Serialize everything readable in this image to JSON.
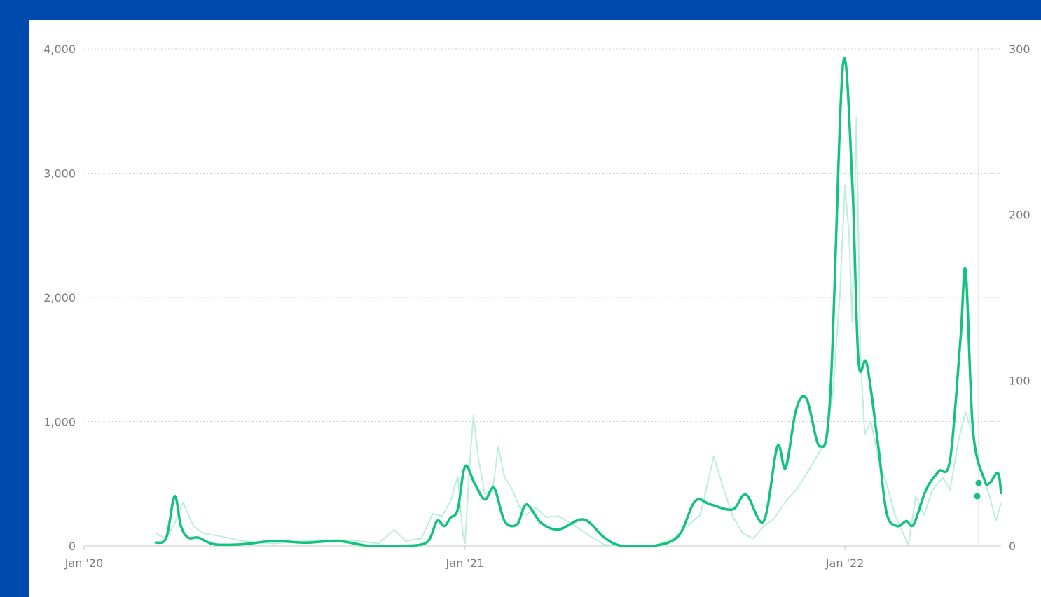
{
  "colors": {
    "frame": "#004aad",
    "panel": "#ffffff",
    "average_line": "#12c27e",
    "daily_line": "#bdeedc",
    "grid": "#cfcfcf",
    "tick_text": "#7a7a7a"
  },
  "chart_data": {
    "type": "line",
    "title": "",
    "xlabel": "",
    "ylabel_left": "",
    "ylabel_right": "",
    "x_axis": {
      "min": "2020-01-01",
      "max": "2022-05-31",
      "ticks": [
        {
          "date": "2020-01-01",
          "label": "Jan '20"
        },
        {
          "date": "2021-01-01",
          "label": "Jan '21"
        },
        {
          "date": "2022-01-01",
          "label": "Jan '22"
        }
      ]
    },
    "y_left": {
      "min": 0,
      "max": 4000,
      "ticks": [
        0,
        1000,
        2000,
        3000,
        4000
      ],
      "tick_labels": [
        "0",
        "1,000",
        "2,000",
        "3,000",
        "4,000"
      ]
    },
    "y_right": {
      "min": 0,
      "max": 300,
      "ticks": [
        0,
        100,
        200,
        300
      ],
      "tick_labels": [
        "0",
        "100",
        "200",
        "300"
      ]
    },
    "grid": true,
    "legend": "none",
    "series": [
      {
        "axis": "left",
        "style": "daily-values-light",
        "points": [
          [
            "2020-03-10",
            100
          ],
          [
            "2020-03-20",
            60
          ],
          [
            "2020-03-28",
            180
          ],
          [
            "2020-04-05",
            350
          ],
          [
            "2020-04-15",
            160
          ],
          [
            "2020-04-25",
            100
          ],
          [
            "2020-05-10",
            80
          ],
          [
            "2020-06-01",
            40
          ],
          [
            "2020-07-01",
            20
          ],
          [
            "2020-08-01",
            40
          ],
          [
            "2020-09-01",
            50
          ],
          [
            "2020-09-20",
            40
          ],
          [
            "2020-10-10",
            20
          ],
          [
            "2020-10-25",
            130
          ],
          [
            "2020-11-05",
            40
          ],
          [
            "2020-11-20",
            60
          ],
          [
            "2020-12-01",
            260
          ],
          [
            "2020-12-10",
            240
          ],
          [
            "2020-12-18",
            360
          ],
          [
            "2020-12-25",
            560
          ],
          [
            "2020-12-30",
            100
          ],
          [
            "2021-01-01",
            20
          ],
          [
            "2021-01-05",
            600
          ],
          [
            "2021-01-09",
            1050
          ],
          [
            "2021-01-14",
            700
          ],
          [
            "2021-01-20",
            420
          ],
          [
            "2021-01-27",
            420
          ],
          [
            "2021-02-02",
            800
          ],
          [
            "2021-02-08",
            550
          ],
          [
            "2021-02-15",
            460
          ],
          [
            "2021-02-22",
            320
          ],
          [
            "2021-03-01",
            250
          ],
          [
            "2021-03-10",
            310
          ],
          [
            "2021-03-20",
            230
          ],
          [
            "2021-04-01",
            240
          ],
          [
            "2021-04-15",
            170
          ],
          [
            "2021-05-01",
            80
          ],
          [
            "2021-05-15",
            10
          ],
          [
            "2021-06-01",
            0
          ],
          [
            "2021-07-01",
            0
          ],
          [
            "2021-07-20",
            60
          ],
          [
            "2021-08-01",
            150
          ],
          [
            "2021-08-15",
            250
          ],
          [
            "2021-08-28",
            720
          ],
          [
            "2021-09-05",
            500
          ],
          [
            "2021-09-15",
            240
          ],
          [
            "2021-09-25",
            100
          ],
          [
            "2021-10-05",
            60
          ],
          [
            "2021-10-15",
            160
          ],
          [
            "2021-10-25",
            220
          ],
          [
            "2021-11-05",
            360
          ],
          [
            "2021-11-15",
            450
          ],
          [
            "2021-11-25",
            580
          ],
          [
            "2021-12-05",
            720
          ],
          [
            "2021-12-12",
            820
          ],
          [
            "2021-12-20",
            1200
          ],
          [
            "2021-12-27",
            2000
          ],
          [
            "2022-01-01",
            2900
          ],
          [
            "2022-01-05",
            2500
          ],
          [
            "2022-01-08",
            1800
          ],
          [
            "2022-01-12",
            3450
          ],
          [
            "2022-01-16",
            1500
          ],
          [
            "2022-01-20",
            900
          ],
          [
            "2022-01-26",
            1000
          ],
          [
            "2022-02-02",
            700
          ],
          [
            "2022-02-10",
            500
          ],
          [
            "2022-02-18",
            250
          ],
          [
            "2022-02-25",
            120
          ],
          [
            "2022-03-03",
            10
          ],
          [
            "2022-03-10",
            400
          ],
          [
            "2022-03-18",
            250
          ],
          [
            "2022-03-26",
            450
          ],
          [
            "2022-04-05",
            550
          ],
          [
            "2022-04-12",
            450
          ],
          [
            "2022-04-20",
            850
          ],
          [
            "2022-04-27",
            1080
          ],
          [
            "2022-05-05",
            850
          ],
          [
            "2022-05-12",
            600
          ],
          [
            "2022-05-20",
            400
          ],
          [
            "2022-05-26",
            200
          ],
          [
            "2022-05-31",
            350
          ]
        ]
      },
      {
        "axis": "right",
        "style": "rolling-average-bold",
        "points": [
          [
            "2020-03-10",
            2
          ],
          [
            "2020-03-20",
            5
          ],
          [
            "2020-03-28",
            30
          ],
          [
            "2020-04-03",
            12
          ],
          [
            "2020-04-10",
            5
          ],
          [
            "2020-04-20",
            5
          ],
          [
            "2020-05-05",
            1
          ],
          [
            "2020-06-01",
            1
          ],
          [
            "2020-07-01",
            3
          ],
          [
            "2020-08-01",
            2
          ],
          [
            "2020-09-01",
            3
          ],
          [
            "2020-10-01",
            0
          ],
          [
            "2020-11-01",
            0
          ],
          [
            "2020-11-25",
            2
          ],
          [
            "2020-12-05",
            15
          ],
          [
            "2020-12-12",
            12
          ],
          [
            "2020-12-18",
            17
          ],
          [
            "2020-12-25",
            22
          ],
          [
            "2021-01-01",
            48
          ],
          [
            "2021-01-10",
            38
          ],
          [
            "2021-01-20",
            28
          ],
          [
            "2021-01-29",
            35
          ],
          [
            "2021-02-08",
            15
          ],
          [
            "2021-02-20",
            13
          ],
          [
            "2021-03-01",
            25
          ],
          [
            "2021-03-15",
            14
          ],
          [
            "2021-04-01",
            10
          ],
          [
            "2021-04-25",
            16
          ],
          [
            "2021-05-15",
            5
          ],
          [
            "2021-06-01",
            0
          ],
          [
            "2021-07-01",
            0
          ],
          [
            "2021-07-25",
            6
          ],
          [
            "2021-08-10",
            27
          ],
          [
            "2021-08-25",
            25
          ],
          [
            "2021-09-15",
            22
          ],
          [
            "2021-09-28",
            31
          ],
          [
            "2021-10-15",
            15
          ],
          [
            "2021-10-28",
            60
          ],
          [
            "2021-11-05",
            47
          ],
          [
            "2021-11-15",
            82
          ],
          [
            "2021-11-25",
            89
          ],
          [
            "2021-12-08",
            60
          ],
          [
            "2021-12-18",
            92
          ],
          [
            "2021-12-30",
            290
          ],
          [
            "2022-01-08",
            220
          ],
          [
            "2022-01-14",
            112
          ],
          [
            "2022-01-22",
            110
          ],
          [
            "2022-02-02",
            60
          ],
          [
            "2022-02-10",
            20
          ],
          [
            "2022-02-20",
            12
          ],
          [
            "2022-03-01",
            15
          ],
          [
            "2022-03-08",
            13
          ],
          [
            "2022-03-20",
            34
          ],
          [
            "2022-04-01",
            45
          ],
          [
            "2022-04-12",
            52
          ],
          [
            "2022-04-22",
            125
          ],
          [
            "2022-04-27",
            166
          ],
          [
            "2022-05-04",
            70
          ],
          [
            "2022-05-15",
            40
          ],
          [
            "2022-05-20",
            38
          ],
          [
            "2022-05-28",
            44
          ],
          [
            "2022-05-31",
            32
          ]
        ]
      }
    ]
  }
}
